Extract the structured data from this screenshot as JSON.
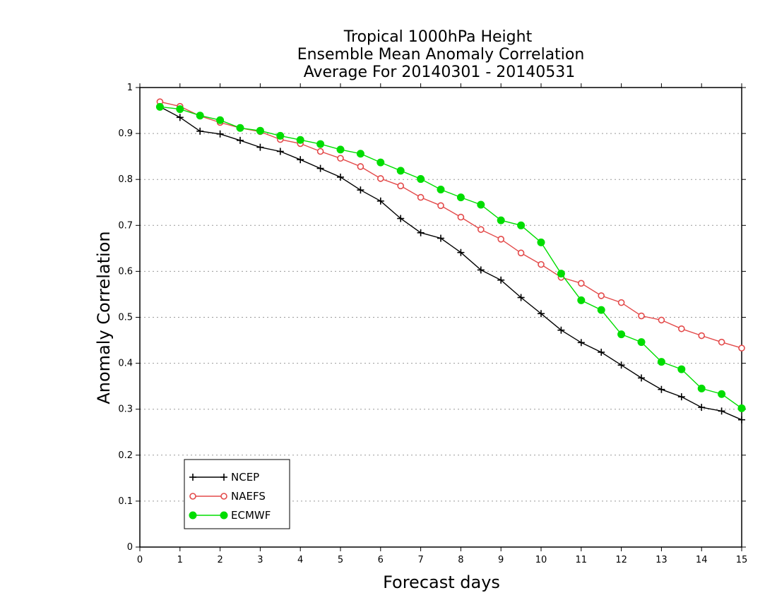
{
  "chart_data": {
    "type": "line",
    "title_lines": [
      "Tropical 1000hPa Height",
      "Ensemble Mean Anomaly Correlation",
      "Average For 20140301 - 20140531"
    ],
    "xlabel": "Forecast days",
    "ylabel": "Anomaly Correlation",
    "xlim": [
      0,
      15
    ],
    "ylim": [
      0,
      1
    ],
    "x_ticks": [
      0,
      1,
      2,
      3,
      4,
      5,
      6,
      7,
      8,
      9,
      10,
      11,
      12,
      13,
      14,
      15
    ],
    "y_ticks": [
      0,
      0.1,
      0.2,
      0.3,
      0.4,
      0.5,
      0.6,
      0.7,
      0.8,
      0.9,
      1
    ],
    "y_tick_labels": [
      "0",
      "0.1",
      "0.2",
      "0.3",
      "0.4",
      "0.5",
      "0.6",
      "0.7",
      "0.8",
      "0.9",
      "1"
    ],
    "grid": "horizontal dotted",
    "legend_position": "bottom-left",
    "x": [
      0.5,
      1,
      1.5,
      2,
      2.5,
      3,
      3.5,
      4,
      4.5,
      5,
      5.5,
      6,
      6.5,
      7,
      7.5,
      8,
      8.5,
      9,
      9.5,
      10,
      10.5,
      11,
      11.5,
      12,
      12.5,
      13,
      13.5,
      14,
      14.5,
      15
    ],
    "series": [
      {
        "name": "NCEP",
        "color": "#000000",
        "marker": "plus",
        "values": [
          0.958,
          0.935,
          0.905,
          0.899,
          0.885,
          0.87,
          0.861,
          0.843,
          0.824,
          0.805,
          0.777,
          0.753,
          0.715,
          0.684,
          0.672,
          0.641,
          0.603,
          0.581,
          0.543,
          0.508,
          0.472,
          0.445,
          0.424,
          0.396,
          0.368,
          0.343,
          0.327,
          0.304,
          0.296,
          0.277
        ]
      },
      {
        "name": "NAEFS",
        "color": "#e34a4a",
        "marker": "open-circle",
        "values": [
          0.969,
          0.959,
          0.938,
          0.924,
          0.912,
          0.904,
          0.887,
          0.878,
          0.861,
          0.846,
          0.828,
          0.802,
          0.786,
          0.761,
          0.743,
          0.718,
          0.691,
          0.67,
          0.64,
          0.615,
          0.587,
          0.574,
          0.547,
          0.532,
          0.503,
          0.494,
          0.475,
          0.46,
          0.446,
          0.433
        ]
      },
      {
        "name": "ECMWF",
        "color": "#00dd00",
        "marker": "filled-circle",
        "values": [
          0.958,
          0.953,
          0.939,
          0.929,
          0.912,
          0.906,
          0.895,
          0.886,
          0.877,
          0.865,
          0.856,
          0.837,
          0.819,
          0.801,
          0.778,
          0.761,
          0.745,
          0.711,
          0.7,
          0.663,
          0.595,
          0.537,
          0.516,
          0.463,
          0.446,
          0.403,
          0.387,
          0.345,
          0.333,
          0.302
        ]
      }
    ]
  }
}
